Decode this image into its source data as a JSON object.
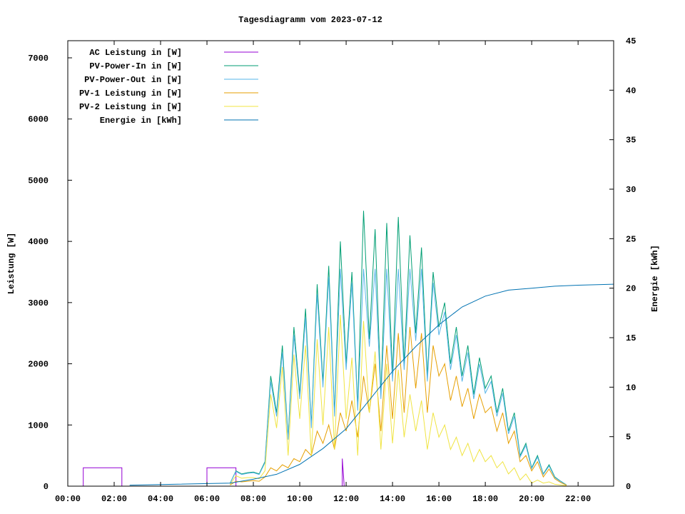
{
  "chart_data": {
    "type": "line",
    "title": "Tagesdiagramm vom 2023-07-12",
    "ylabel": "Leistung [W]",
    "y2label": "Energie [kWh]",
    "xlim": [
      "00:00",
      "23:32"
    ],
    "ylim": [
      0,
      7280
    ],
    "y2lim": [
      0,
      45
    ],
    "grid": false,
    "legend_position": "top-left",
    "xticks": [
      "00:00",
      "02:00",
      "04:00",
      "06:00",
      "08:00",
      "10:00",
      "12:00",
      "14:00",
      "16:00",
      "18:00",
      "20:00",
      "22:00"
    ],
    "yticks": [
      "0",
      "1000",
      "2000",
      "3000",
      "4000",
      "5000",
      "6000",
      "7000"
    ],
    "y2ticks": [
      "0",
      "5",
      "10",
      "15",
      "20",
      "25",
      "30",
      "35",
      "40",
      "45"
    ],
    "day_x": [
      "07:00",
      "07:15",
      "07:30",
      "07:45",
      "08:00",
      "08:15",
      "08:30",
      "08:45",
      "09:00",
      "09:15",
      "09:30",
      "09:45",
      "10:00",
      "10:15",
      "10:30",
      "10:45",
      "11:00",
      "11:15",
      "11:30",
      "11:45",
      "12:00",
      "12:15",
      "12:30",
      "12:45",
      "13:00",
      "13:15",
      "13:30",
      "13:45",
      "14:00",
      "14:15",
      "14:30",
      "14:45",
      "15:00",
      "15:15",
      "15:30",
      "15:45",
      "16:00",
      "16:15",
      "16:30",
      "16:45",
      "17:00",
      "17:15",
      "17:30",
      "17:45",
      "18:00",
      "18:15",
      "18:30",
      "18:45",
      "19:00",
      "19:15",
      "19:30",
      "19:45",
      "20:00",
      "20:15",
      "20:30",
      "20:45",
      "21:00",
      "21:15",
      "21:30"
    ],
    "series": [
      {
        "name": "AC Leistung in [W]",
        "color": "#9400d3",
        "axis": "y",
        "x": [
          "00:00",
          "00:40",
          "00:40",
          "02:20",
          "02:20",
          "05:55",
          "06:00",
          "06:00",
          "07:15",
          "07:15",
          "11:50",
          "11:50",
          "11:55",
          "12:00"
        ],
        "values": [
          0,
          0,
          300,
          300,
          0,
          0,
          0,
          300,
          300,
          0,
          0,
          450,
          0,
          0
        ]
      },
      {
        "name": "PV-Power-In in [W]",
        "color": "#009e73",
        "axis": "y",
        "x_ref": "day_x",
        "values": [
          50,
          250,
          200,
          220,
          230,
          200,
          400,
          1800,
          1200,
          2300,
          800,
          2600,
          1500,
          2900,
          1000,
          3300,
          1700,
          3600,
          1200,
          4000,
          2000,
          3500,
          1300,
          4500,
          2400,
          4200,
          1500,
          4300,
          1800,
          4400,
          2000,
          4100,
          2500,
          3900,
          1800,
          3500,
          2600,
          3000,
          2000,
          2600,
          1800,
          2300,
          1500,
          2100,
          1600,
          1800,
          1200,
          1600,
          900,
          1200,
          500,
          700,
          300,
          500,
          200,
          350,
          150,
          80,
          20
        ]
      },
      {
        "name": "PV-Power-Out in [W]",
        "color": "#56b4e9",
        "axis": "y",
        "x_ref": "day_x",
        "values": [
          48,
          240,
          190,
          210,
          220,
          190,
          380,
          1710,
          1140,
          2185,
          760,
          2470,
          1425,
          2755,
          950,
          3135,
          1615,
          3420,
          1140,
          3550,
          1900,
          3325,
          1235,
          3550,
          2280,
          3550,
          1425,
          3550,
          1710,
          3550,
          1900,
          3550,
          2375,
          3550,
          1710,
          3325,
          2470,
          2850,
          1900,
          2470,
          1710,
          2185,
          1425,
          1995,
          1520,
          1710,
          1140,
          1520,
          855,
          1140,
          475,
          665,
          285,
          475,
          190,
          330,
          140,
          75,
          18
        ]
      },
      {
        "name": "PV-1 Leistung in [W]",
        "color": "#e69f00",
        "axis": "y",
        "x_ref": "day_x",
        "values": [
          20,
          80,
          70,
          80,
          90,
          80,
          150,
          300,
          250,
          350,
          300,
          450,
          400,
          600,
          500,
          900,
          700,
          1000,
          600,
          1200,
          900,
          1400,
          800,
          1800,
          1200,
          2000,
          900,
          2300,
          1100,
          2500,
          1200,
          2600,
          1600,
          2500,
          1200,
          2300,
          1800,
          2000,
          1400,
          1800,
          1300,
          1600,
          1100,
          1500,
          1200,
          1300,
          900,
          1200,
          700,
          900,
          400,
          500,
          250,
          400,
          150,
          280,
          120,
          60,
          15
        ]
      },
      {
        "name": "PV-2 Leistung in [W]",
        "color": "#f0e442",
        "axis": "y",
        "x_ref": "day_x",
        "values": [
          30,
          170,
          130,
          140,
          140,
          120,
          250,
          1500,
          950,
          1950,
          500,
          2150,
          1100,
          2300,
          500,
          2400,
          1000,
          2600,
          600,
          2800,
          1100,
          2100,
          500,
          2700,
          1200,
          2200,
          600,
          2000,
          700,
          1900,
          800,
          1500,
          900,
          1400,
          600,
          1200,
          800,
          1000,
          600,
          800,
          500,
          700,
          400,
          600,
          400,
          500,
          300,
          400,
          200,
          300,
          100,
          200,
          50,
          100,
          50,
          70,
          30,
          20,
          5
        ]
      },
      {
        "name": "Energie in [kWh]",
        "color": "#0072b2",
        "axis": "y2",
        "x": [
          "02:40",
          "07:00",
          "08:00",
          "09:00",
          "10:00",
          "11:00",
          "12:00",
          "13:00",
          "14:00",
          "15:00",
          "16:00",
          "17:00",
          "18:00",
          "19:00",
          "20:00",
          "21:00",
          "22:00",
          "23:32"
        ],
        "values": [
          0.1,
          0.3,
          0.7,
          1.2,
          2.2,
          3.8,
          5.8,
          8.7,
          11.6,
          14.1,
          16.3,
          18.1,
          19.2,
          19.8,
          20.0,
          20.2,
          20.3,
          20.4
        ]
      }
    ]
  }
}
